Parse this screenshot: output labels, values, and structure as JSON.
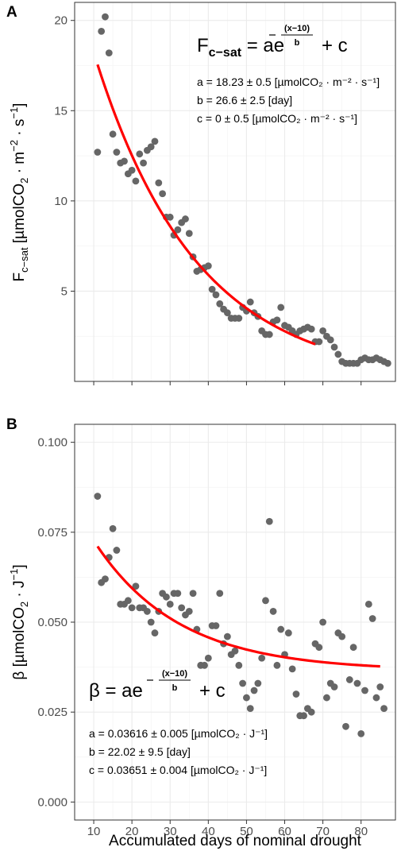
{
  "chart_data": [
    {
      "panel": "A",
      "type": "scatter",
      "xlabel": "",
      "ylabel": "F_c-sat [µmolCO2 · m^-2 · s^-1]",
      "xlim": [
        5,
        89
      ],
      "ylim": [
        0,
        21
      ],
      "xticks": [
        10,
        20,
        30,
        40,
        50,
        60,
        70,
        80
      ],
      "yticks": [
        5,
        10,
        15,
        20
      ],
      "grid": true,
      "points": [
        [
          11,
          12.7
        ],
        [
          12,
          19.4
        ],
        [
          13,
          20.2
        ],
        [
          14,
          18.2
        ],
        [
          15,
          13.7
        ],
        [
          16,
          12.7
        ],
        [
          17,
          12.1
        ],
        [
          18,
          12.2
        ],
        [
          19,
          11.5
        ],
        [
          20,
          11.7
        ],
        [
          21,
          11.1
        ],
        [
          22,
          12.6
        ],
        [
          23,
          12.1
        ],
        [
          24,
          12.8
        ],
        [
          25,
          13.0
        ],
        [
          26,
          13.3
        ],
        [
          27,
          11.0
        ],
        [
          28,
          10.4
        ],
        [
          29,
          9.1
        ],
        [
          30,
          9.1
        ],
        [
          31,
          8.1
        ],
        [
          32,
          8.4
        ],
        [
          33,
          8.8
        ],
        [
          34,
          9.0
        ],
        [
          35,
          8.2
        ],
        [
          36,
          6.9
        ],
        [
          37,
          6.1
        ],
        [
          38,
          6.2
        ],
        [
          39,
          6.3
        ],
        [
          40,
          6.4
        ],
        [
          41,
          5.1
        ],
        [
          42,
          4.8
        ],
        [
          43,
          4.3
        ],
        [
          44,
          4.0
        ],
        [
          45,
          3.8
        ],
        [
          46,
          3.5
        ],
        [
          47,
          3.5
        ],
        [
          48,
          3.5
        ],
        [
          49,
          4.1
        ],
        [
          50,
          3.9
        ],
        [
          51,
          4.4
        ],
        [
          52,
          3.8
        ],
        [
          53,
          3.6
        ],
        [
          54,
          2.8
        ],
        [
          55,
          2.6
        ],
        [
          56,
          2.6
        ],
        [
          57,
          3.3
        ],
        [
          58,
          3.4
        ],
        [
          59,
          4.1
        ],
        [
          60,
          3.1
        ],
        [
          61,
          3.0
        ],
        [
          62,
          2.8
        ],
        [
          63,
          2.6
        ],
        [
          64,
          2.8
        ],
        [
          65,
          2.9
        ],
        [
          66,
          3.0
        ],
        [
          67,
          2.9
        ],
        [
          68,
          2.2
        ],
        [
          69,
          2.2
        ],
        [
          70,
          2.8
        ],
        [
          71,
          2.5
        ],
        [
          72,
          2.3
        ],
        [
          73,
          1.9
        ],
        [
          74,
          1.5
        ],
        [
          75,
          1.1
        ],
        [
          76,
          1.0
        ],
        [
          77,
          1.0
        ],
        [
          78,
          1.0
        ],
        [
          79,
          1.0
        ],
        [
          80,
          1.2
        ],
        [
          81,
          1.3
        ],
        [
          82,
          1.2
        ],
        [
          83,
          1.2
        ],
        [
          84,
          1.3
        ],
        [
          85,
          1.2
        ],
        [
          86,
          1.1
        ],
        [
          87,
          1.0
        ]
      ],
      "fit": {
        "a": 18.23,
        "b": 26.6,
        "c": 0,
        "x_range": [
          11,
          68
        ],
        "color": "#ff0000"
      },
      "point_color": "#666666",
      "equation": {
        "lhs_main": "F",
        "lhs_sub": "c−sat",
        "rhs_main": "ae",
        "exponent_numerator": "(x−10)",
        "exponent_denominator": "b",
        "rhs_tail": "+ c"
      },
      "params": [
        "a = 18.23 ± 0.5 [µmolCO₂ · m⁻² · s⁻¹]",
        "b = 26.6 ± 2.5 [day]",
        "c = 0 ± 0.5 [µmolCO₂ · m⁻² · s⁻¹]"
      ]
    },
    {
      "panel": "B",
      "type": "scatter",
      "xlabel": "Accumulated days of nominal drought",
      "ylabel": "β [µmolCO2 · J^-1]",
      "xlim": [
        5,
        89
      ],
      "ylim": [
        -0.005,
        0.105
      ],
      "xticks": [
        10,
        20,
        30,
        40,
        50,
        60,
        70,
        80
      ],
      "yticks": [
        0.0,
        0.025,
        0.05,
        0.075,
        0.1
      ],
      "ytick_labels": [
        "0.000",
        "0.025",
        "0.050",
        "0.075",
        "0.100"
      ],
      "grid": true,
      "points": [
        [
          11,
          0.085
        ],
        [
          12,
          0.061
        ],
        [
          13,
          0.062
        ],
        [
          14,
          0.068
        ],
        [
          15,
          0.076
        ],
        [
          16,
          0.07
        ],
        [
          17,
          0.055
        ],
        [
          18,
          0.055
        ],
        [
          19,
          0.056
        ],
        [
          20,
          0.054
        ],
        [
          21,
          0.06
        ],
        [
          22,
          0.054
        ],
        [
          23,
          0.054
        ],
        [
          24,
          0.053
        ],
        [
          25,
          0.05
        ],
        [
          26,
          0.047
        ],
        [
          27,
          0.053
        ],
        [
          28,
          0.058
        ],
        [
          29,
          0.057
        ],
        [
          30,
          0.055
        ],
        [
          31,
          0.058
        ],
        [
          32,
          0.058
        ],
        [
          33,
          0.054
        ],
        [
          34,
          0.052
        ],
        [
          35,
          0.053
        ],
        [
          36,
          0.058
        ],
        [
          37,
          0.048
        ],
        [
          38,
          0.038
        ],
        [
          39,
          0.038
        ],
        [
          40,
          0.04
        ],
        [
          41,
          0.049
        ],
        [
          42,
          0.049
        ],
        [
          43,
          0.058
        ],
        [
          44,
          0.044
        ],
        [
          45,
          0.046
        ],
        [
          46,
          0.041
        ],
        [
          47,
          0.042
        ],
        [
          48,
          0.038
        ],
        [
          49,
          0.033
        ],
        [
          50,
          0.029
        ],
        [
          51,
          0.026
        ],
        [
          52,
          0.031
        ],
        [
          53,
          0.033
        ],
        [
          54,
          0.04
        ],
        [
          55,
          0.056
        ],
        [
          56,
          0.078
        ],
        [
          57,
          0.053
        ],
        [
          58,
          0.038
        ],
        [
          59,
          0.048
        ],
        [
          60,
          0.041
        ],
        [
          61,
          0.047
        ],
        [
          62,
          0.037
        ],
        [
          63,
          0.03
        ],
        [
          64,
          0.024
        ],
        [
          65,
          0.024
        ],
        [
          66,
          0.026
        ],
        [
          67,
          0.025
        ],
        [
          68,
          0.044
        ],
        [
          69,
          0.043
        ],
        [
          70,
          0.05
        ],
        [
          71,
          0.029
        ],
        [
          72,
          0.033
        ],
        [
          73,
          0.032
        ],
        [
          74,
          0.047
        ],
        [
          75,
          0.046
        ],
        [
          76,
          0.021
        ],
        [
          77,
          0.034
        ],
        [
          78,
          0.043
        ],
        [
          79,
          0.033
        ],
        [
          80,
          0.019
        ],
        [
          81,
          0.031
        ],
        [
          82,
          0.055
        ],
        [
          83,
          0.051
        ],
        [
          84,
          0.029
        ],
        [
          85,
          0.032
        ],
        [
          86,
          0.026
        ]
      ],
      "fit": {
        "a": 0.03616,
        "b": 22.02,
        "c": 0.03651,
        "x_range": [
          11,
          85
        ],
        "color": "#ff0000"
      },
      "point_color": "#666666",
      "equation": {
        "lhs_main": "β",
        "lhs_sub": "",
        "rhs_main": "ae",
        "exponent_numerator": "(x−10)",
        "exponent_denominator": "b",
        "rhs_tail": "+ c"
      },
      "params": [
        "a = 0.03616 ± 0.005 [µmolCO₂ · J⁻¹]",
        "b = 22.02 ± 9.5 [day]",
        "c = 0.03651 ± 0.004 [µmolCO₂ · J⁻¹]"
      ]
    }
  ],
  "panel_labels": [
    "A",
    "B"
  ]
}
